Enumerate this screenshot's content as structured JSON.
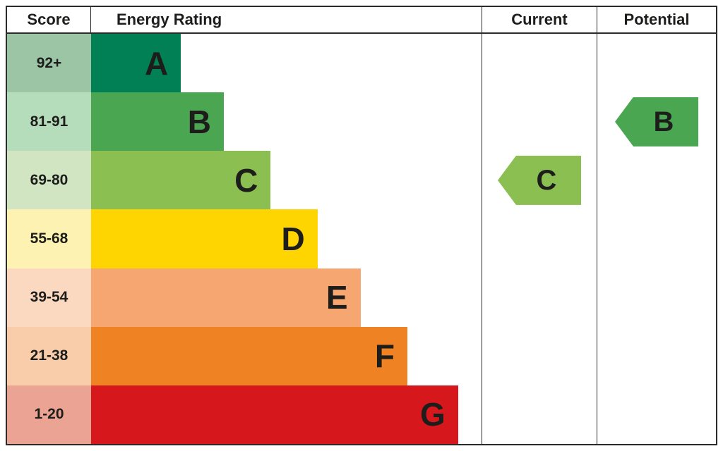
{
  "headers": {
    "score": "Score",
    "energy_rating": "Energy Rating",
    "current": "Current",
    "potential": "Potential"
  },
  "chart_data": {
    "type": "bar",
    "title": "Energy Rating (EPC)",
    "categories": [
      "92+",
      "81-91",
      "69-80",
      "55-68",
      "39-54",
      "21-38",
      "1-20"
    ],
    "bands": [
      {
        "letter": "A",
        "score_range": "92+",
        "bar_color": "#008054",
        "score_cell_color": "#9cc5a5",
        "bar_width_pct": 23
      },
      {
        "letter": "B",
        "score_range": "81-91",
        "bar_color": "#4aa651",
        "score_cell_color": "#b5dcbb",
        "bar_width_pct": 34
      },
      {
        "letter": "C",
        "score_range": "69-80",
        "bar_color": "#8bbf51",
        "score_cell_color": "#d2e5c3",
        "bar_width_pct": 46
      },
      {
        "letter": "D",
        "score_range": "55-68",
        "bar_color": "#fed401",
        "score_cell_color": "#fdf2b2",
        "bar_width_pct": 58
      },
      {
        "letter": "E",
        "score_range": "39-54",
        "bar_color": "#f6a671",
        "score_cell_color": "#fbd9c1",
        "bar_width_pct": 69
      },
      {
        "letter": "F",
        "score_range": "21-38",
        "bar_color": "#ef8222",
        "score_cell_color": "#f9cda9",
        "bar_width_pct": 81
      },
      {
        "letter": "G",
        "score_range": "1-20",
        "bar_color": "#d6171c",
        "score_cell_color": "#eba493",
        "bar_width_pct": 94
      }
    ],
    "current": {
      "rating": "C",
      "arrow_color": "#8bbf51"
    },
    "potential": {
      "rating": "B",
      "arrow_color": "#4aa651"
    },
    "legend_position": "none",
    "grid": false
  }
}
